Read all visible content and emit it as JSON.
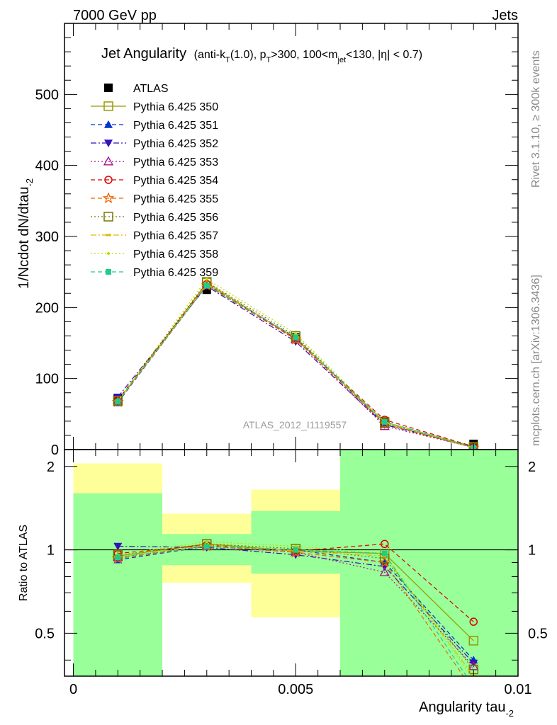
{
  "header": {
    "left": "7000 GeV pp",
    "right": "Jets"
  },
  "side_labels": {
    "rivet": "Rivet 3.1.10, ≥ 300k events",
    "mcplots": "mcplots.cern.ch [arXiv:1306.3436]"
  },
  "chart_data": [
    {
      "type": "line",
      "title": "Jet Angularity (anti-k_T(1.0), p_T>300, 100<m_jet<130, |η| < 0.7)",
      "title_main": "Jet Angularity",
      "title_detail": "(anti-k_T(1.0), p_T>300, 100<m_jet<130, |η| < 0.7)",
      "watermark": "ATLAS_2012_I1119557",
      "xlabel": "Angularity tau_-2",
      "ylabel": "1/Ncdot dN/dtau_-2",
      "xlim": [
        -0.0002,
        0.01
      ],
      "ylim": [
        0,
        600
      ],
      "yticks": [
        0,
        100,
        200,
        300,
        400,
        500
      ],
      "x": [
        0.001,
        0.003,
        0.005,
        0.007,
        0.009
      ],
      "series": [
        {
          "name": "ATLAS",
          "color": "#000000",
          "marker": "square-filled",
          "dash": "none",
          "values": [
            72,
            225,
            158,
            40,
            8
          ]
        },
        {
          "name": "Pythia 6.425 350",
          "color": "#999900",
          "marker": "square-open",
          "dash": "solid",
          "values": [
            68,
            235,
            156,
            39,
            3.8
          ]
        },
        {
          "name": "Pythia 6.425 351",
          "color": "#0033cc",
          "marker": "triangle-up-filled",
          "dash": "dashed",
          "values": [
            66,
            232,
            158,
            36,
            3.2
          ]
        },
        {
          "name": "Pythia 6.425 352",
          "color": "#3311bb",
          "marker": "triangle-down-filled",
          "dash": "dashdot",
          "values": [
            74,
            230,
            152,
            35,
            3.1
          ]
        },
        {
          "name": "Pythia 6.425 353",
          "color": "#aa1188",
          "marker": "triangle-up-open",
          "dash": "dotted",
          "values": [
            68,
            232,
            155,
            33,
            3.0
          ]
        },
        {
          "name": "Pythia 6.425 354",
          "color": "#dd0000",
          "marker": "circle-open",
          "dash": "dashed",
          "values": [
            70,
            233,
            156,
            42,
            4.4
          ]
        },
        {
          "name": "Pythia 6.425 355",
          "color": "#ee6600",
          "marker": "star-open",
          "dash": "dashed",
          "values": [
            67,
            231,
            155,
            36,
            2.5
          ]
        },
        {
          "name": "Pythia 6.425 356",
          "color": "#777700",
          "marker": "square-open",
          "dash": "dotted",
          "values": [
            69,
            236,
            160,
            37,
            3.0
          ]
        },
        {
          "name": "Pythia 6.425 357",
          "color": "#ddbb00",
          "marker": "dash-point",
          "dash": "dashdot",
          "values": [
            68,
            233,
            157,
            38,
            2.8
          ]
        },
        {
          "name": "Pythia 6.425 358",
          "color": "#bbdd00",
          "marker": "dot",
          "dash": "dotted",
          "values": [
            69,
            240,
            163,
            39,
            2.7
          ]
        },
        {
          "name": "Pythia 6.425 359",
          "color": "#22cc88",
          "marker": "square-filled-small",
          "dash": "dashed",
          "values": [
            68,
            231,
            158,
            39,
            2.6
          ]
        }
      ]
    },
    {
      "type": "line",
      "ylabel": "Ratio to ATLAS",
      "xlabel": "Angularity tau_-2",
      "xlim": [
        -0.0002,
        0.01
      ],
      "ylim": [
        0.35,
        2.3
      ],
      "yscale": "log",
      "yticks": [
        0.5,
        1,
        2
      ],
      "xticks": [
        0,
        0.005,
        0.01
      ],
      "xtick_labels": [
        "0",
        "0.005",
        "0.01"
      ],
      "bands": [
        {
          "x0": 0.0,
          "x1": 0.002,
          "green": [
            0.3,
            1.6
          ],
          "yellow": [
            0.3,
            2.05
          ]
        },
        {
          "x0": 0.002,
          "x1": 0.004,
          "green": [
            0.88,
            1.14
          ],
          "yellow": [
            0.76,
            1.35
          ]
        },
        {
          "x0": 0.004,
          "x1": 0.006,
          "green": [
            0.82,
            1.38
          ],
          "yellow": [
            0.57,
            1.65
          ]
        },
        {
          "x0": 0.006,
          "x1": 0.008,
          "green": [
            0.3,
            2.5
          ],
          "yellow": [
            0.3,
            2.5
          ]
        },
        {
          "x0": 0.008,
          "x1": 0.01,
          "green": [
            0.3,
            2.5
          ],
          "yellow": [
            0.3,
            1.88
          ]
        }
      ],
      "band_colors": {
        "green": "#99ff99",
        "yellow": "#ffff99"
      },
      "x": [
        0.001,
        0.003,
        0.005,
        0.007,
        0.009
      ],
      "series": [
        {
          "name": "Pythia 6.425 350",
          "values": [
            0.95,
            1.05,
            0.99,
            0.97,
            0.47
          ]
        },
        {
          "name": "Pythia 6.425 351",
          "values": [
            0.92,
            1.03,
            1.0,
            0.9,
            0.4
          ]
        },
        {
          "name": "Pythia 6.425 352",
          "values": [
            1.03,
            1.02,
            0.96,
            0.87,
            0.39
          ]
        },
        {
          "name": "Pythia 6.425 353",
          "values": [
            0.94,
            1.03,
            0.98,
            0.83,
            0.38
          ]
        },
        {
          "name": "Pythia 6.425 354",
          "values": [
            0.97,
            1.04,
            0.99,
            1.05,
            0.55
          ]
        },
        {
          "name": "Pythia 6.425 355",
          "values": [
            0.93,
            1.03,
            0.98,
            0.9,
            0.31
          ]
        },
        {
          "name": "Pythia 6.425 356",
          "values": [
            0.96,
            1.05,
            1.01,
            0.93,
            0.37
          ]
        },
        {
          "name": "Pythia 6.425 357",
          "values": [
            0.94,
            1.04,
            0.99,
            0.95,
            0.35
          ]
        },
        {
          "name": "Pythia 6.425 358",
          "values": [
            0.96,
            1.07,
            1.03,
            0.97,
            0.34
          ]
        },
        {
          "name": "Pythia 6.425 359",
          "values": [
            0.94,
            1.03,
            1.0,
            0.97,
            0.32
          ]
        }
      ]
    }
  ]
}
